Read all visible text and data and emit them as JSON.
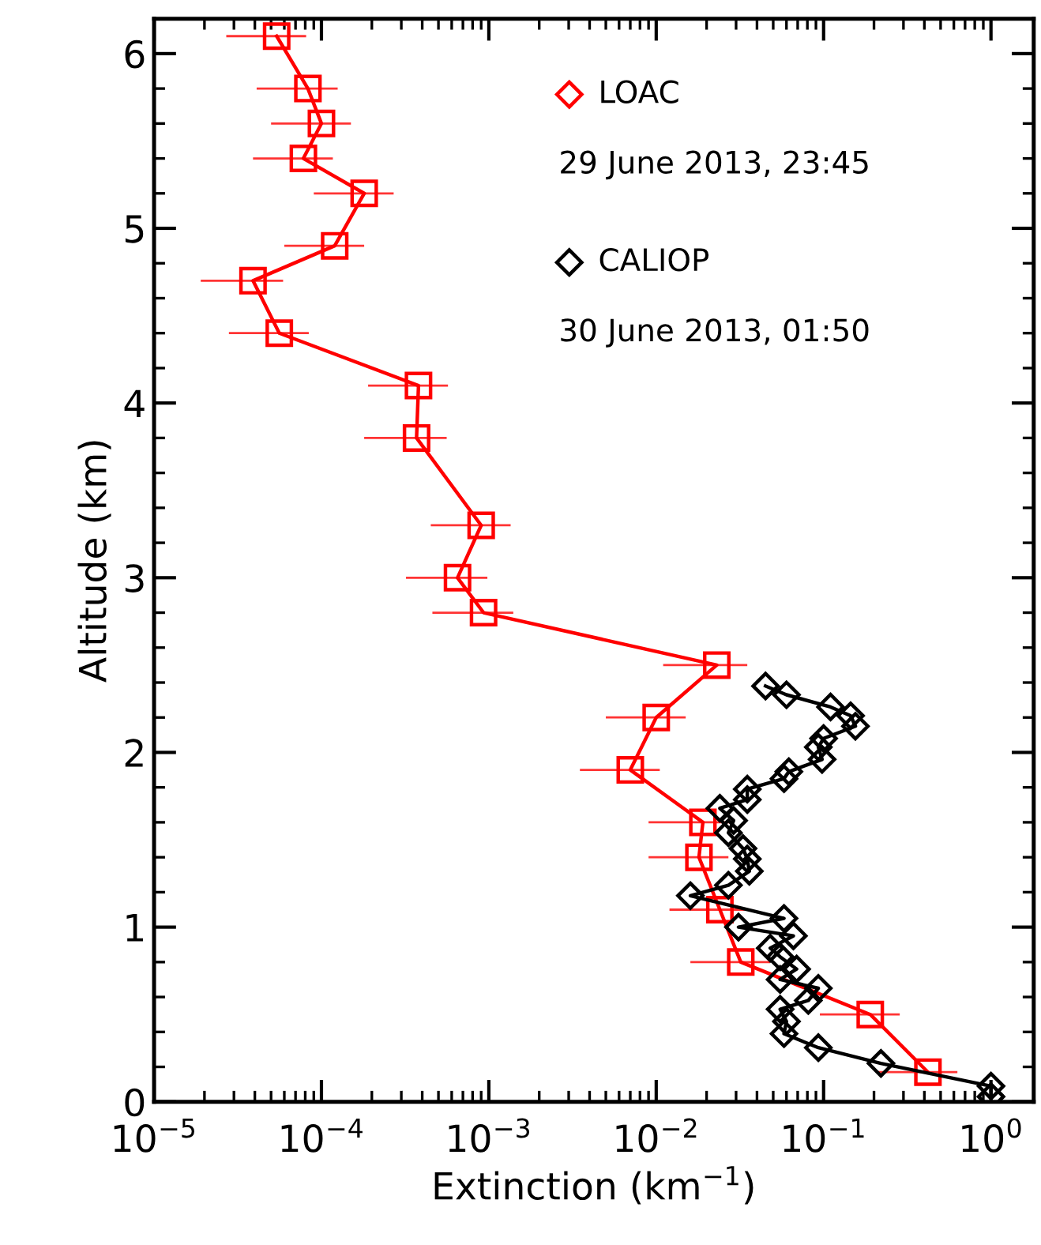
{
  "chart_data": {
    "type": "line",
    "xlabel": "Extinction (km$^{−1}$)",
    "ylabel": "Altitude (km)",
    "log": "x",
    "xlim": [
      1e-05,
      1.8
    ],
    "ylim": [
      0,
      6.2
    ],
    "xticks": [
      {
        "value": 1e-05,
        "label": "10$^{−5}$"
      },
      {
        "value": 0.0001,
        "label": "10$^{−4}$"
      },
      {
        "value": 0.001,
        "label": "10$^{−3}$"
      },
      {
        "value": 0.01,
        "label": "10$^{−2}$"
      },
      {
        "value": 0.1,
        "label": "10$^{−1}$"
      },
      {
        "value": 1,
        "label": "10$^{0}$"
      }
    ],
    "yticks": [
      0,
      1,
      2,
      3,
      4,
      5,
      6
    ],
    "grid": false,
    "legend": "top right",
    "line_style": "solid",
    "annotations": [
      "29 June 2013, 23:45",
      "30 June 2013, 01:50"
    ],
    "series": [
      {
        "name": "LOAC",
        "color": "#ff0000",
        "marker": "square",
        "values": [
          6.1,
          5.8,
          5.6,
          5.4,
          5.2,
          4.9,
          4.7,
          4.4,
          4.1,
          3.8,
          3.3,
          3.0,
          2.8,
          2.5,
          2.2,
          1.9,
          1.6,
          1.4,
          1.1,
          0.8,
          0.5,
          0.17
        ],
        "x": [
          5.4e-05,
          8.3e-05,
          0.0001,
          7.8e-05,
          0.00018,
          0.00012,
          3.9e-05,
          5.6e-05,
          0.00038,
          0.00037,
          0.0009,
          0.00065,
          0.00093,
          0.023,
          0.01,
          0.007,
          0.019,
          0.018,
          0.024,
          0.032,
          0.19,
          0.42
        ],
        "xerrors": [
          2.7e-05,
          4.2e-05,
          5e-05,
          3.9e-05,
          9e-05,
          6e-05,
          2e-05,
          2.8e-05,
          0.00019,
          0.00019,
          0.00045,
          0.00033,
          0.00047,
          0.012,
          0.005,
          0.0035,
          0.01,
          0.009,
          0.012,
          0.016,
          0.095,
          0.21
        ]
      },
      {
        "name": "CALIOP",
        "color": "#000000",
        "marker": "diamond",
        "values": [
          2.38,
          2.33,
          2.26,
          2.21,
          2.15,
          2.08,
          2.03,
          1.96,
          1.89,
          1.85,
          1.79,
          1.73,
          1.68,
          1.61,
          1.54,
          1.45,
          1.39,
          1.32,
          1.24,
          1.18,
          1.05,
          1.0,
          0.95,
          0.88,
          0.83,
          0.76,
          0.7,
          0.65,
          0.58,
          0.53,
          0.46,
          0.39,
          0.31,
          0.22,
          0.09,
          0.03
        ],
        "x": [
          0.045,
          0.06,
          0.11,
          0.145,
          0.155,
          0.1,
          0.093,
          0.098,
          0.062,
          0.058,
          0.035,
          0.035,
          0.024,
          0.029,
          0.027,
          0.033,
          0.035,
          0.036,
          0.027,
          0.016,
          0.058,
          0.031,
          0.066,
          0.048,
          0.055,
          0.069,
          0.055,
          0.093,
          0.081,
          0.055,
          0.06,
          0.058,
          0.093,
          0.22,
          1.0,
          1.0
        ]
      }
    ]
  }
}
